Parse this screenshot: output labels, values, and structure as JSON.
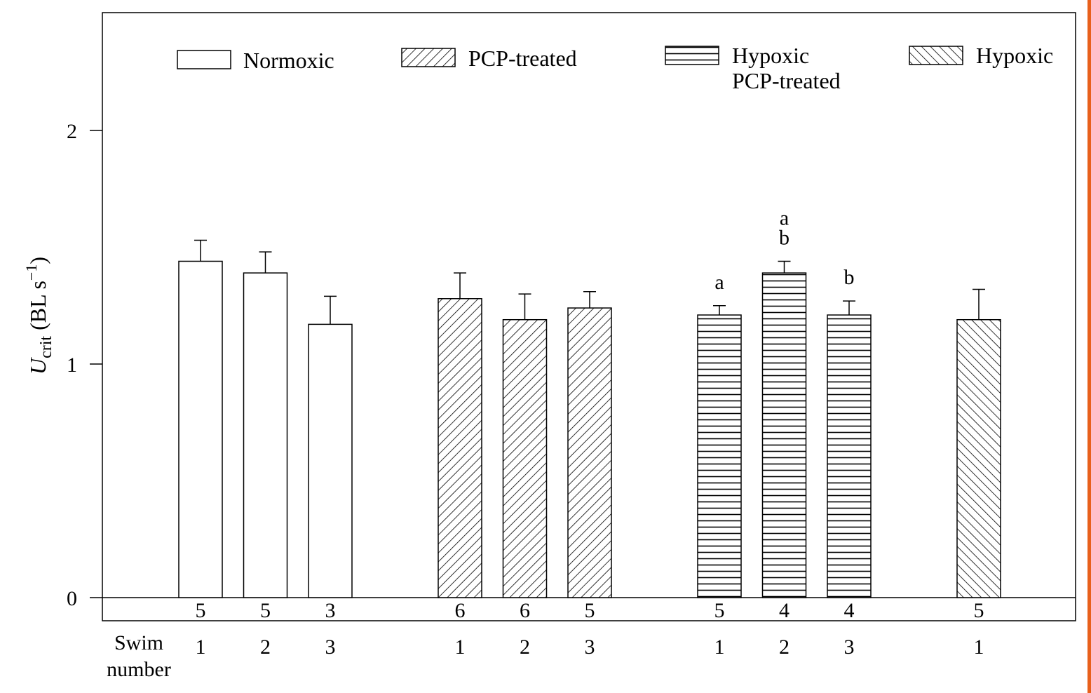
{
  "chart_data": {
    "type": "bar",
    "ylabel": {
      "main": "U",
      "sub": "crit",
      "units_prefix": " (BL s",
      "units_sup": "−1",
      "units_suffix": ")"
    },
    "ylim": [
      0,
      2.5
    ],
    "yticks": [
      0,
      1,
      2
    ],
    "grid": false,
    "legend_position": "top",
    "swim_axis_label": [
      "Swim",
      "number"
    ],
    "groups": [
      {
        "name": "Normoxic",
        "pattern": "none",
        "bars": [
          {
            "swim": "1",
            "value": 1.44,
            "error": 0.09,
            "n": "5",
            "sig": ""
          },
          {
            "swim": "2",
            "value": 1.39,
            "error": 0.09,
            "n": "5",
            "sig": ""
          },
          {
            "swim": "3",
            "value": 1.17,
            "error": 0.12,
            "n": "3",
            "sig": ""
          }
        ]
      },
      {
        "name": "PCP-treated",
        "pattern": "diag-up",
        "bars": [
          {
            "swim": "1",
            "value": 1.28,
            "error": 0.11,
            "n": "6",
            "sig": ""
          },
          {
            "swim": "2",
            "value": 1.19,
            "error": 0.11,
            "n": "6",
            "sig": ""
          },
          {
            "swim": "3",
            "value": 1.24,
            "error": 0.07,
            "n": "5",
            "sig": ""
          }
        ]
      },
      {
        "name": "Hypoxic PCP-treated",
        "legend_lines": [
          "Hypoxic",
          "PCP-treated"
        ],
        "pattern": "horizontal",
        "bars": [
          {
            "swim": "1",
            "value": 1.21,
            "error": 0.04,
            "n": "5",
            "sig": "a"
          },
          {
            "swim": "2",
            "value": 1.39,
            "error": 0.05,
            "n": "4",
            "sig": "a|b"
          },
          {
            "swim": "3",
            "value": 1.21,
            "error": 0.06,
            "n": "4",
            "sig": "b"
          }
        ]
      },
      {
        "name": "Hypoxic",
        "pattern": "diag-down",
        "bars": [
          {
            "swim": "1",
            "value": 1.19,
            "error": 0.13,
            "n": "5",
            "sig": ""
          }
        ]
      }
    ]
  },
  "colors": {
    "ink": "#000000",
    "background": "#ffffff",
    "right_rule": "#e8601c"
  }
}
